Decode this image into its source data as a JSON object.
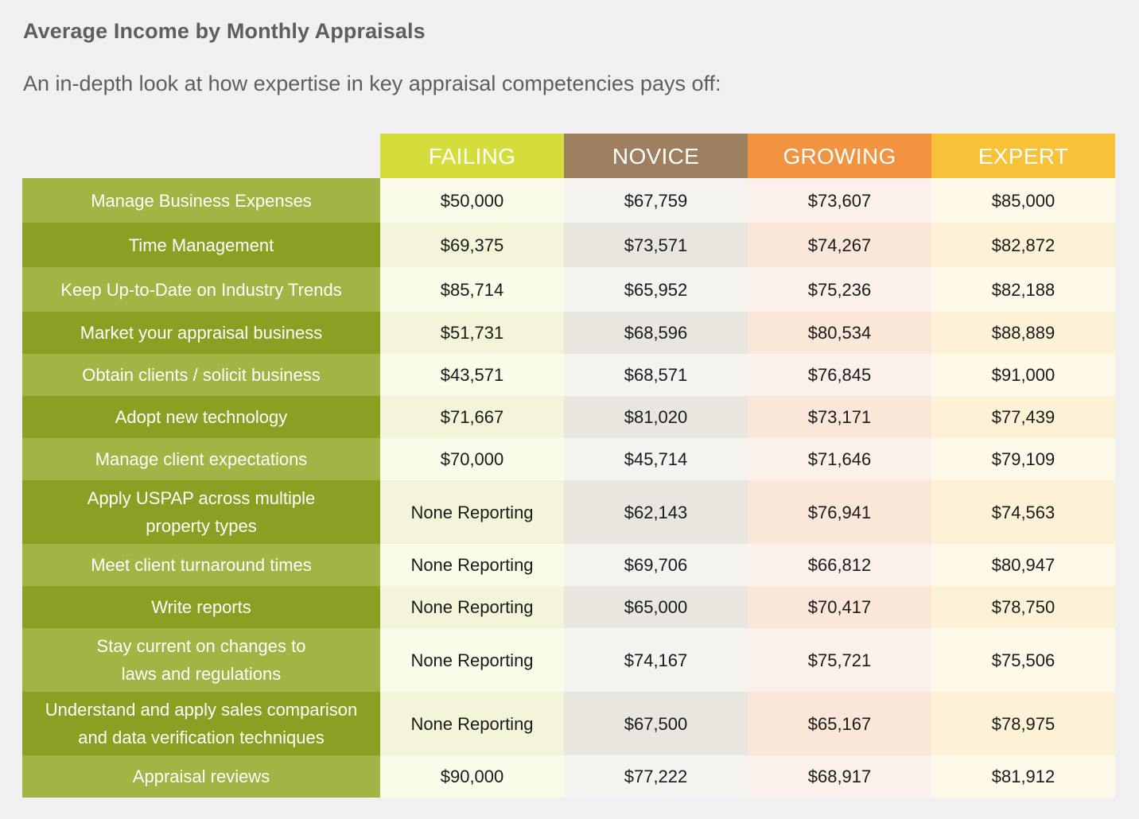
{
  "title": "Average Income by Monthly Appraisals",
  "subtitle": "An in-depth look at how expertise in key appraisal competencies pays off:",
  "columns": [
    "FAILING",
    "NOVICE",
    "GROWING",
    "EXPERT"
  ],
  "colors": {
    "failing": "#d4dd3c",
    "novice": "#9e7f5f",
    "growing": "#f2933f",
    "expert": "#f7c138",
    "label_light": "#a1b444",
    "label_dark": "#89a022"
  },
  "rows": [
    {
      "label": "Manage Business Expenses",
      "values": [
        "$50,000",
        "$67,759",
        "$73,607",
        "$85,000"
      ]
    },
    {
      "label": "Time Management",
      "values": [
        "$69,375",
        "$73,571",
        "$74,267",
        "$82,872"
      ]
    },
    {
      "label": "Keep Up-to-Date on Industry Trends",
      "values": [
        "$85,714",
        "$65,952",
        "$75,236",
        "$82,188"
      ]
    },
    {
      "label": "Market your appraisal business",
      "values": [
        "$51,731",
        "$68,596",
        "$80,534",
        "$88,889"
      ]
    },
    {
      "label": "Obtain clients / solicit business",
      "values": [
        "$43,571",
        "$68,571",
        "$76,845",
        "$91,000"
      ]
    },
    {
      "label": "Adopt new technology",
      "values": [
        "$71,667",
        "$81,020",
        "$73,171",
        "$77,439"
      ]
    },
    {
      "label": "Manage client expectations",
      "values": [
        "$70,000",
        "$45,714",
        "$71,646",
        "$79,109"
      ]
    },
    {
      "label": "Apply USPAP across multiple\nproperty types",
      "values": [
        "None Reporting",
        "$62,143",
        "$76,941",
        "$74,563"
      ]
    },
    {
      "label": "Meet client turnaround times",
      "values": [
        "None Reporting",
        "$69,706",
        "$66,812",
        "$80,947"
      ]
    },
    {
      "label": "Write reports",
      "values": [
        "None Reporting",
        "$65,000",
        "$70,417",
        "$78,750"
      ]
    },
    {
      "label": "Stay current on changes to\nlaws and regulations",
      "values": [
        "None Reporting",
        "$74,167",
        "$75,721",
        "$75,506"
      ]
    },
    {
      "label": "Understand and apply sales comparison\nand data verification techniques",
      "values": [
        "None Reporting",
        "$67,500",
        "$65,167",
        "$78,975"
      ]
    },
    {
      "label": "Appraisal reviews",
      "values": [
        "$90,000",
        "$77,222",
        "$68,917",
        "$81,912"
      ]
    }
  ]
}
